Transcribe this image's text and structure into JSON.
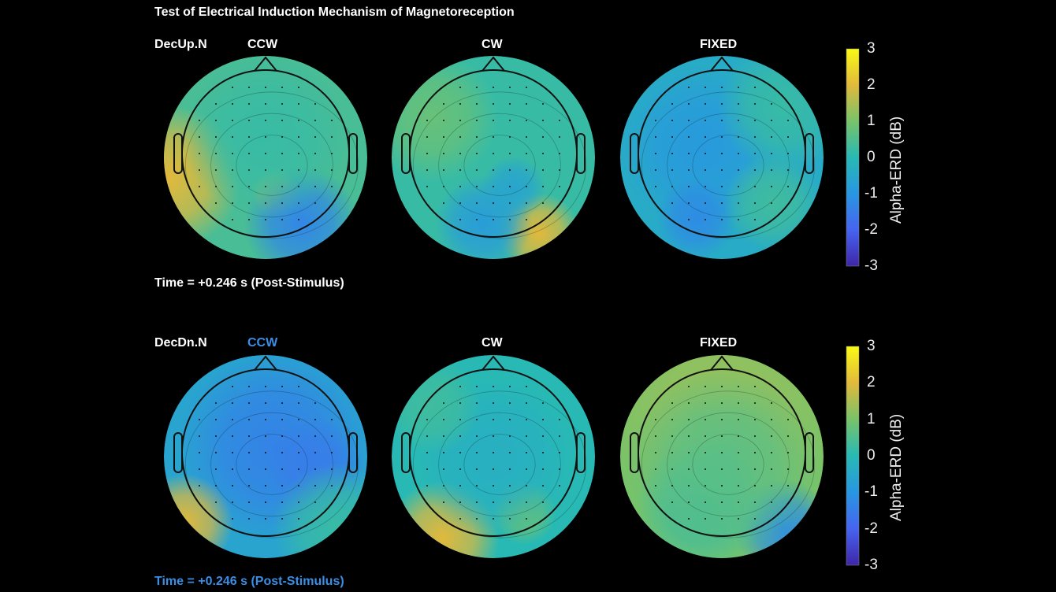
{
  "title": "Test of Electrical Induction Mechanism of Magnetoreception",
  "highlight_color": "#3a8ee6",
  "rows": [
    {
      "label": "DecUp.N",
      "conditions": [
        "CCW",
        "CW",
        "FIXED"
      ],
      "highlighted_condition": null,
      "time_label": "Time = +0.246 s (Post-Stimulus)",
      "time_highlighted": false
    },
    {
      "label": "DecDn.N",
      "conditions": [
        "CCW",
        "CW",
        "FIXED"
      ],
      "highlighted_condition": "CCW",
      "time_label": "Time = +0.246 s (Post-Stimulus)",
      "time_highlighted": true
    }
  ],
  "chart_data": {
    "type": "heatmap",
    "title": "Test of Electrical Induction Mechanism of Magnetoreception",
    "subtype": "scalp topography maps",
    "colormap": "parula",
    "colorbar": {
      "label": "Alpha-ERD (dB)",
      "range": [
        -3,
        3
      ],
      "ticks": [
        "3",
        "2",
        "1",
        "0",
        "-1",
        "-2",
        "-3"
      ]
    },
    "panels": [
      {
        "row": "DecUp.N",
        "condition": "CCW"
      },
      {
        "row": "DecUp.N",
        "condition": "CW"
      },
      {
        "row": "DecUp.N",
        "condition": "FIXED"
      },
      {
        "row": "DecDn.N",
        "condition": "CCW"
      },
      {
        "row": "DecDn.N",
        "condition": "CW"
      },
      {
        "row": "DecDn.N",
        "condition": "FIXED"
      }
    ]
  }
}
